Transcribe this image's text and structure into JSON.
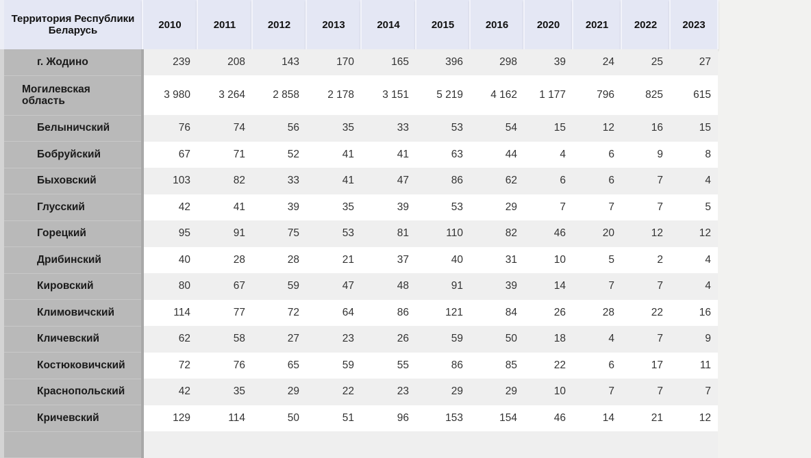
{
  "table": {
    "header_territory": "Территория Республики Беларусь",
    "years": [
      "2010",
      "2011",
      "2012",
      "2013",
      "2014",
      "2015",
      "2016",
      "2020",
      "2021",
      "2022",
      "2023"
    ],
    "rows": [
      {
        "name": "г. Жодино",
        "level": "district",
        "values": [
          "239",
          "208",
          "143",
          "170",
          "165",
          "396",
          "298",
          "39",
          "24",
          "25",
          "27"
        ]
      },
      {
        "name": "Могилевская область",
        "level": "region",
        "values": [
          "3 980",
          "3 264",
          "2 858",
          "2 178",
          "3 151",
          "5 219",
          "4 162",
          "1 177",
          "796",
          "825",
          "615"
        ]
      },
      {
        "name": "Белыничский",
        "level": "district",
        "values": [
          "76",
          "74",
          "56",
          "35",
          "33",
          "53",
          "54",
          "15",
          "12",
          "16",
          "15"
        ]
      },
      {
        "name": "Бобруйский",
        "level": "district",
        "values": [
          "67",
          "71",
          "52",
          "41",
          "41",
          "63",
          "44",
          "4",
          "6",
          "9",
          "8"
        ]
      },
      {
        "name": "Быховский",
        "level": "district",
        "values": [
          "103",
          "82",
          "33",
          "41",
          "47",
          "86",
          "62",
          "6",
          "6",
          "7",
          "4"
        ]
      },
      {
        "name": "Глусский",
        "level": "district",
        "values": [
          "42",
          "41",
          "39",
          "35",
          "39",
          "53",
          "29",
          "7",
          "7",
          "7",
          "5"
        ]
      },
      {
        "name": "Горецкий",
        "level": "district",
        "values": [
          "95",
          "91",
          "75",
          "53",
          "81",
          "110",
          "82",
          "46",
          "20",
          "12",
          "12"
        ]
      },
      {
        "name": "Дрибинский",
        "level": "district",
        "values": [
          "40",
          "28",
          "28",
          "21",
          "37",
          "40",
          "31",
          "10",
          "5",
          "2",
          "4"
        ]
      },
      {
        "name": "Кировский",
        "level": "district",
        "values": [
          "80",
          "67",
          "59",
          "47",
          "48",
          "91",
          "39",
          "14",
          "7",
          "7",
          "4"
        ]
      },
      {
        "name": "Климовичский",
        "level": "district",
        "values": [
          "114",
          "77",
          "72",
          "64",
          "86",
          "121",
          "84",
          "26",
          "28",
          "22",
          "16"
        ]
      },
      {
        "name": "Кличевский",
        "level": "district",
        "values": [
          "62",
          "58",
          "27",
          "23",
          "26",
          "59",
          "50",
          "18",
          "4",
          "7",
          "9"
        ]
      },
      {
        "name": "Костюковичский",
        "level": "district",
        "values": [
          "72",
          "76",
          "65",
          "59",
          "55",
          "86",
          "85",
          "22",
          "6",
          "17",
          "11"
        ]
      },
      {
        "name": "Краснопольский",
        "level": "district",
        "values": [
          "42",
          "35",
          "29",
          "22",
          "23",
          "29",
          "29",
          "10",
          "7",
          "7",
          "7"
        ]
      },
      {
        "name": "Кричевский",
        "level": "district",
        "values": [
          "129",
          "114",
          "50",
          "51",
          "96",
          "153",
          "154",
          "46",
          "14",
          "21",
          "12"
        ]
      },
      {
        "name": "",
        "level": "district",
        "values": [
          "",
          "",
          "",
          "",
          "",
          "",
          "",
          "",
          "",
          "",
          ""
        ]
      }
    ]
  }
}
